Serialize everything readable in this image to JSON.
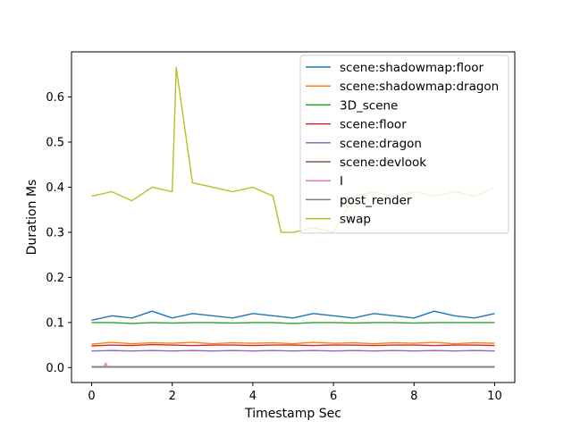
{
  "chart_data": {
    "type": "line",
    "title": "",
    "xlabel": "Timestamp Sec",
    "ylabel": "Duration Ms",
    "xlim": [
      -0.5,
      10.5
    ],
    "ylim": [
      -0.033,
      0.7
    ],
    "xticks": [
      0,
      2,
      4,
      6,
      8,
      10
    ],
    "xtick_labels": [
      "0",
      "2",
      "4",
      "6",
      "8",
      "10"
    ],
    "yticks": [
      0.0,
      0.1,
      0.2,
      0.3,
      0.4,
      0.5,
      0.6
    ],
    "ytick_labels": [
      "0.0",
      "0.1",
      "0.2",
      "0.3",
      "0.4",
      "0.5",
      "0.6"
    ],
    "grid": false,
    "legend_position": "upper-right",
    "series": [
      {
        "name": "scene:shadowmap:floor",
        "color": "#1f77b4",
        "x": [
          0.0,
          0.5,
          1.0,
          1.5,
          2.0,
          2.5,
          3.0,
          3.5,
          4.0,
          4.5,
          5.0,
          5.5,
          6.0,
          6.5,
          7.0,
          7.5,
          8.0,
          8.5,
          9.0,
          9.5,
          10.0
        ],
        "values": [
          0.105,
          0.115,
          0.11,
          0.125,
          0.11,
          0.12,
          0.115,
          0.11,
          0.12,
          0.115,
          0.11,
          0.12,
          0.115,
          0.11,
          0.12,
          0.115,
          0.11,
          0.125,
          0.115,
          0.11,
          0.12
        ]
      },
      {
        "name": "scene:shadowmap:dragon",
        "color": "#ff7f0e",
        "x": [
          0.0,
          0.5,
          1.0,
          1.5,
          2.0,
          2.5,
          3.0,
          3.5,
          4.0,
          4.5,
          5.0,
          5.5,
          6.0,
          6.5,
          7.0,
          7.5,
          8.0,
          8.5,
          9.0,
          9.5,
          10.0
        ],
        "values": [
          0.052,
          0.056,
          0.053,
          0.055,
          0.054,
          0.056,
          0.053,
          0.055,
          0.054,
          0.055,
          0.053,
          0.056,
          0.054,
          0.055,
          0.053,
          0.055,
          0.054,
          0.056,
          0.053,
          0.055,
          0.054
        ]
      },
      {
        "name": "3D_scene",
        "color": "#2ca02c",
        "x": [
          0.0,
          0.5,
          1.0,
          1.5,
          2.0,
          2.5,
          3.0,
          3.5,
          4.0,
          4.5,
          5.0,
          5.5,
          6.0,
          6.5,
          7.0,
          7.5,
          8.0,
          8.5,
          9.0,
          9.5,
          10.0
        ],
        "values": [
          0.1,
          0.1,
          0.098,
          0.1,
          0.099,
          0.1,
          0.1,
          0.099,
          0.1,
          0.1,
          0.098,
          0.1,
          0.1,
          0.099,
          0.1,
          0.1,
          0.099,
          0.1,
          0.1,
          0.1,
          0.1
        ]
      },
      {
        "name": "scene:floor",
        "color": "#d62728",
        "x": [
          0.0,
          0.5,
          1.0,
          1.5,
          2.0,
          2.5,
          3.0,
          3.5,
          4.0,
          4.5,
          5.0,
          5.5,
          6.0,
          6.5,
          7.0,
          7.5,
          8.0,
          8.5,
          9.0,
          9.5,
          10.0
        ],
        "values": [
          0.048,
          0.05,
          0.049,
          0.051,
          0.05,
          0.049,
          0.05,
          0.05,
          0.049,
          0.05,
          0.05,
          0.049,
          0.05,
          0.05,
          0.049,
          0.05,
          0.05,
          0.049,
          0.05,
          0.05,
          0.049
        ]
      },
      {
        "name": "scene:dragon",
        "color": "#9467bd",
        "x": [
          0.0,
          0.5,
          1.0,
          1.5,
          2.0,
          2.5,
          3.0,
          3.5,
          4.0,
          4.5,
          5.0,
          5.5,
          6.0,
          6.5,
          7.0,
          7.5,
          8.0,
          8.5,
          9.0,
          9.5,
          10.0
        ],
        "values": [
          0.037,
          0.038,
          0.037,
          0.038,
          0.037,
          0.038,
          0.037,
          0.038,
          0.037,
          0.038,
          0.037,
          0.038,
          0.037,
          0.038,
          0.037,
          0.038,
          0.037,
          0.038,
          0.037,
          0.038,
          0.037
        ]
      },
      {
        "name": "scene:devlook",
        "color": "#8c564b",
        "x": [
          0.0,
          2.5,
          5.0,
          7.5,
          10.0
        ],
        "values": [
          0.002,
          0.002,
          0.002,
          0.002,
          0.002
        ]
      },
      {
        "name": "I",
        "color": "#e377c2",
        "x": [
          0.0,
          0.3,
          0.35,
          0.4,
          2.5,
          5.0,
          7.5,
          10.0
        ],
        "values": [
          0.001,
          0.001,
          0.01,
          0.001,
          0.001,
          0.001,
          0.001,
          0.001
        ]
      },
      {
        "name": "post_render",
        "color": "#7f7f7f",
        "x": [
          0.0,
          2.5,
          5.0,
          7.5,
          10.0
        ],
        "values": [
          0.001,
          0.001,
          0.001,
          0.001,
          0.001
        ]
      },
      {
        "name": "swap",
        "color": "#bcbd22",
        "x": [
          0.0,
          0.5,
          1.0,
          1.5,
          2.0,
          2.1,
          2.5,
          3.0,
          3.5,
          4.0,
          4.5,
          4.7,
          5.0,
          5.5,
          6.0,
          6.5,
          7.0,
          7.5,
          8.0,
          8.5,
          9.0,
          9.5,
          10.0
        ],
        "values": [
          0.38,
          0.39,
          0.37,
          0.4,
          0.39,
          0.665,
          0.41,
          0.4,
          0.39,
          0.4,
          0.38,
          0.3,
          0.3,
          0.31,
          0.3,
          0.38,
          0.39,
          0.38,
          0.39,
          0.38,
          0.39,
          0.38,
          0.4
        ]
      }
    ]
  }
}
